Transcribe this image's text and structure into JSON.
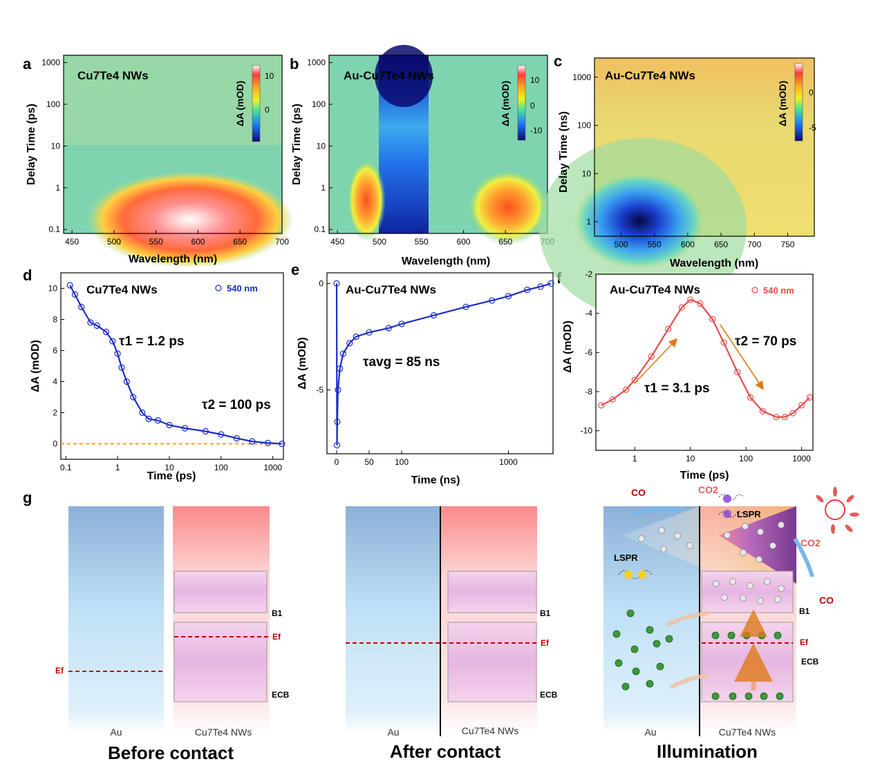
{
  "figure": {
    "panel_labels": [
      "a",
      "b",
      "c",
      "d",
      "e",
      "f",
      "g"
    ],
    "colorbar_title": "ΔA (mOD)"
  },
  "colors": {
    "blue_trace": "#1a2bc8",
    "red_trace": "#e84a4a",
    "dashed_zero": "#f0a020",
    "fermi": "#c00000",
    "arrow": "#e07b1a"
  },
  "chart_data": [
    {
      "id": "a",
      "type": "heatmap",
      "title": "Cu7Te4 NWs",
      "xlabel": "Wavelength (nm)",
      "ylabel": "Delay Time (ps)",
      "xlim": [
        440,
        700
      ],
      "ylim": [
        0.08,
        1500
      ],
      "yscale": "log",
      "xticks": [
        "450",
        "500",
        "550",
        "600",
        "650",
        "700"
      ],
      "yticks": [
        "0.1",
        "1",
        "10",
        "100",
        "1000"
      ],
      "colorbar": {
        "label": "ΔA (mOD)",
        "ticks": [
          "10",
          "0"
        ]
      },
      "features": [
        {
          "desc": "positive ΔA band",
          "x_range": [
            500,
            680
          ],
          "y_range": [
            0.1,
            2
          ],
          "max_mOD": 12
        }
      ]
    },
    {
      "id": "b",
      "type": "heatmap",
      "title": "Au-Cu7Te4 NWs",
      "xlabel": "Wavelength (nm)",
      "ylabel": "Delay Time (ps)",
      "xlim": [
        440,
        700
      ],
      "ylim": [
        0.08,
        1500
      ],
      "yscale": "log",
      "xticks": [
        "450",
        "500",
        "550",
        "600",
        "650",
        "700"
      ],
      "yticks": [
        "0.1",
        "1",
        "10",
        "100",
        "1000"
      ],
      "colorbar": {
        "label": "ΔA (mOD)",
        "ticks": [
          "10",
          "0",
          "-10"
        ]
      },
      "features": [
        {
          "desc": "positive band",
          "x_center": 485,
          "max_mOD": 6
        },
        {
          "desc": "bleach",
          "x_center": 540,
          "min_mOD": -12
        },
        {
          "desc": "positive band",
          "x_center": 650,
          "max_mOD": 8
        }
      ]
    },
    {
      "id": "c",
      "type": "heatmap",
      "title": "Au-Cu7Te4 NWs",
      "xlabel": "Wavelength (nm)",
      "ylabel": "Delay Time (ns)",
      "xlim": [
        460,
        790
      ],
      "ylim": [
        0.5,
        2500
      ],
      "yscale": "log",
      "xticks": [
        "500",
        "550",
        "600",
        "650",
        "700",
        "750"
      ],
      "yticks": [
        "1",
        "10",
        "100",
        "1000"
      ],
      "colorbar": {
        "label": "ΔA (mOD)",
        "ticks": [
          "0",
          "-5"
        ]
      },
      "features": [
        {
          "desc": "bleach",
          "x_center": 530,
          "y_center": 1,
          "min_mOD": -8
        }
      ]
    },
    {
      "id": "d",
      "type": "scatter",
      "title": "Cu7Te4 NWs",
      "legend": "540 nm",
      "xlabel": "Time (ps)",
      "ylabel": "ΔA (mOD)",
      "xscale": "log",
      "xlim": [
        0.08,
        1600
      ],
      "ylim": [
        -1,
        11
      ],
      "xticks": [
        "0.1",
        "1",
        "10",
        "100",
        "1000"
      ],
      "yticks": [
        "0",
        "2",
        "4",
        "6",
        "8",
        "10"
      ],
      "annotations": [
        "τ1 = 1.2 ps",
        "τ2 = 100 ps"
      ],
      "x": [
        0.12,
        0.15,
        0.2,
        0.3,
        0.4,
        0.6,
        0.8,
        1.0,
        1.2,
        1.5,
        2,
        3,
        4,
        6,
        10,
        20,
        50,
        100,
        200,
        400,
        800,
        1500
      ],
      "y": [
        10.2,
        9.6,
        8.8,
        7.8,
        7.6,
        7.2,
        6.6,
        5.8,
        4.9,
        4.0,
        3.0,
        2.0,
        1.6,
        1.5,
        1.2,
        1.0,
        0.8,
        0.6,
        0.35,
        0.15,
        0.05,
        0.0
      ]
    },
    {
      "id": "e",
      "type": "scatter",
      "title": "Au-Cu7Te4 NWs",
      "xlabel": "Time (ns)",
      "ylabel": "ΔA (mOD)",
      "xscale": "linear-then-log",
      "xlim": [
        -10,
        2500
      ],
      "ylim": [
        -8,
        0.5
      ],
      "xticks": [
        "0",
        "50",
        "100",
        "1000"
      ],
      "yticks": [
        "0",
        "-5"
      ],
      "annotations": [
        "τavg = 85 ns"
      ],
      "x": [
        0,
        0.5,
        1,
        2,
        5,
        10,
        20,
        30,
        50,
        80,
        100,
        200,
        400,
        700,
        1000,
        1500,
        2000,
        2500
      ],
      "y": [
        0,
        -7.6,
        -6.5,
        -5.0,
        -4.0,
        -3.3,
        -2.8,
        -2.5,
        -2.3,
        -2.1,
        -1.9,
        -1.5,
        -1.1,
        -0.8,
        -0.6,
        -0.3,
        -0.15,
        0.0
      ]
    },
    {
      "id": "f",
      "type": "scatter",
      "title": "Au-Cu7Te4 NWs",
      "legend": "540 nm",
      "xlabel": "Time (ps)",
      "ylabel": "ΔA (mOD)",
      "xscale": "log",
      "xlim": [
        0.2,
        1600
      ],
      "ylim": [
        -11,
        -2
      ],
      "xticks": [
        "1",
        "10",
        "100",
        "1000"
      ],
      "yticks": [
        "-2",
        "-4",
        "-6",
        "-8",
        "-10"
      ],
      "annotations": [
        "τ1 = 3.1 ps",
        "τ2 = 70 ps"
      ],
      "x": [
        0.25,
        0.4,
        0.7,
        1,
        2,
        4,
        7,
        10,
        15,
        25,
        40,
        70,
        120,
        200,
        350,
        500,
        700,
        1000,
        1400
      ],
      "y": [
        -8.7,
        -8.4,
        -7.9,
        -7.4,
        -6.2,
        -4.8,
        -3.7,
        -3.3,
        -3.5,
        -4.3,
        -5.5,
        -7.0,
        -8.3,
        -9.0,
        -9.3,
        -9.3,
        -9.1,
        -8.7,
        -8.3
      ]
    }
  ],
  "schematic": {
    "before": {
      "caption": "Before contact",
      "left_label": "Au",
      "right_label": "Cu7Te4 NWs",
      "levels": {
        "b1": "B1",
        "ef_right": "Ef",
        "ef_left": "Ef",
        "ecb": "ECB"
      }
    },
    "after": {
      "caption": "After contact",
      "left_label": "Au",
      "right_label": "Cu7Te4 NWs",
      "levels": {
        "b1": "B1",
        "ef": "Ef",
        "ecb": "ECB"
      }
    },
    "illum": {
      "caption": "Illumination",
      "left_label": "Au",
      "right_label": "Cu7Te4 NWs",
      "levels": {
        "b1": "B1",
        "ef": "Ef",
        "ecb": "ECB"
      },
      "labels": {
        "co_left": "CO",
        "co2_top": "CO2",
        "lspr_top": "LSPR",
        "lspr_left": "LSPR",
        "co2_right": "CO2",
        "co_right": "CO"
      }
    }
  }
}
